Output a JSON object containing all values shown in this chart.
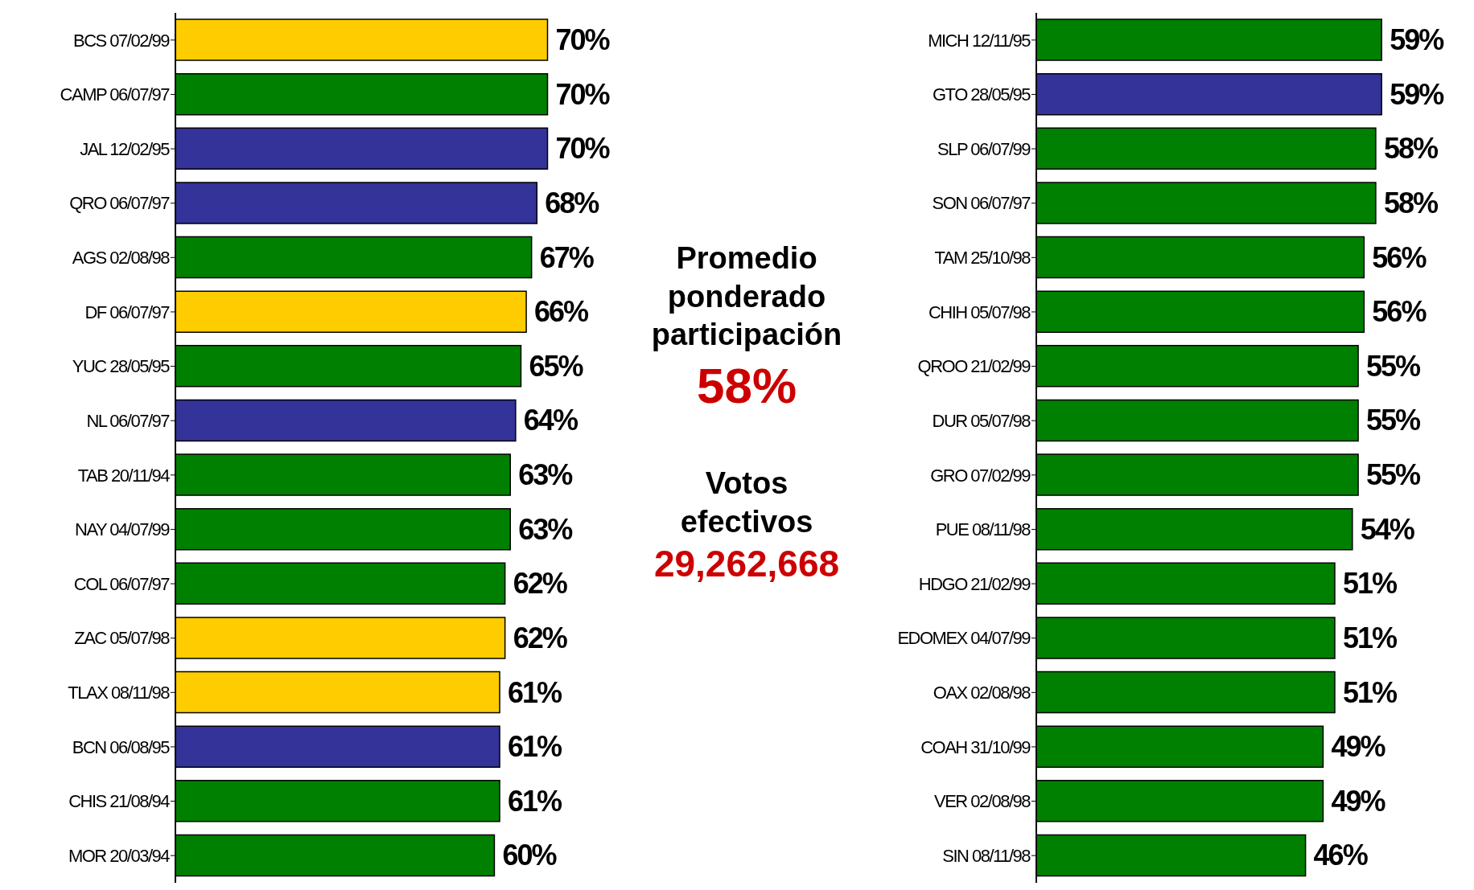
{
  "chart_data": [
    {
      "type": "bar",
      "orientation": "horizontal",
      "categories": [
        "BCS 07/02/99",
        "CAMP 06/07/97",
        "JAL 12/02/95",
        "QRO 06/07/97",
        "AGS 02/08/98",
        "DF 06/07/97",
        "YUC 28/05/95",
        "NL 06/07/97",
        "TAB 20/11/94",
        "NAY 04/07/99",
        "COL 06/07/97",
        "ZAC 05/07/98",
        "TLAX 08/11/98",
        "BCN 06/08/95",
        "CHIS 21/08/94",
        "MOR 20/03/94"
      ],
      "values": [
        70,
        70,
        70,
        68,
        67,
        66,
        65,
        64,
        63,
        63,
        62,
        62,
        61,
        61,
        61,
        60
      ],
      "value_labels": [
        "70%",
        "70%",
        "70%",
        "68%",
        "67%",
        "66%",
        "65%",
        "64%",
        "63%",
        "63%",
        "62%",
        "62%",
        "61%",
        "61%",
        "61%",
        "60%"
      ],
      "colors": [
        "#ffcc00",
        "#008000",
        "#333399",
        "#333399",
        "#008000",
        "#ffcc00",
        "#008000",
        "#333399",
        "#008000",
        "#008000",
        "#008000",
        "#ffcc00",
        "#ffcc00",
        "#333399",
        "#008000",
        "#008000"
      ]
    },
    {
      "type": "other",
      "annotations": [
        "Promedio ponderado participación",
        "58%",
        "Votos efectivos",
        "29,262,668"
      ]
    },
    {
      "type": "bar",
      "orientation": "horizontal",
      "categories": [
        "MICH 12/11/95",
        "GTO 28/05/95",
        "SLP 06/07/99",
        "SON 06/07/97",
        "TAM 25/10/98",
        "CHIH 05/07/98",
        "QROO 21/02/99",
        "DUR 05/07/98",
        "GRO 07/02/99",
        "PUE 08/11/98",
        "HDGO 21/02/99",
        "EDOMEX 04/07/99",
        "OAX 02/08/98",
        "COAH 31/10/99",
        "VER 02/08/98",
        "SIN 08/11/98"
      ],
      "values": [
        59,
        59,
        58,
        58,
        56,
        56,
        55,
        55,
        55,
        54,
        51,
        51,
        51,
        49,
        49,
        46
      ],
      "value_labels": [
        "59%",
        "59%",
        "58%",
        "58%",
        "56%",
        "56%",
        "55%",
        "55%",
        "55%",
        "54%",
        "51%",
        "51%",
        "51%",
        "49%",
        "49%",
        "46%"
      ],
      "colors": [
        "#008000",
        "#333399",
        "#008000",
        "#008000",
        "#008000",
        "#008000",
        "#008000",
        "#008000",
        "#008000",
        "#008000",
        "#008000",
        "#008000",
        "#008000",
        "#008000",
        "#008000",
        "#008000"
      ]
    }
  ]
}
